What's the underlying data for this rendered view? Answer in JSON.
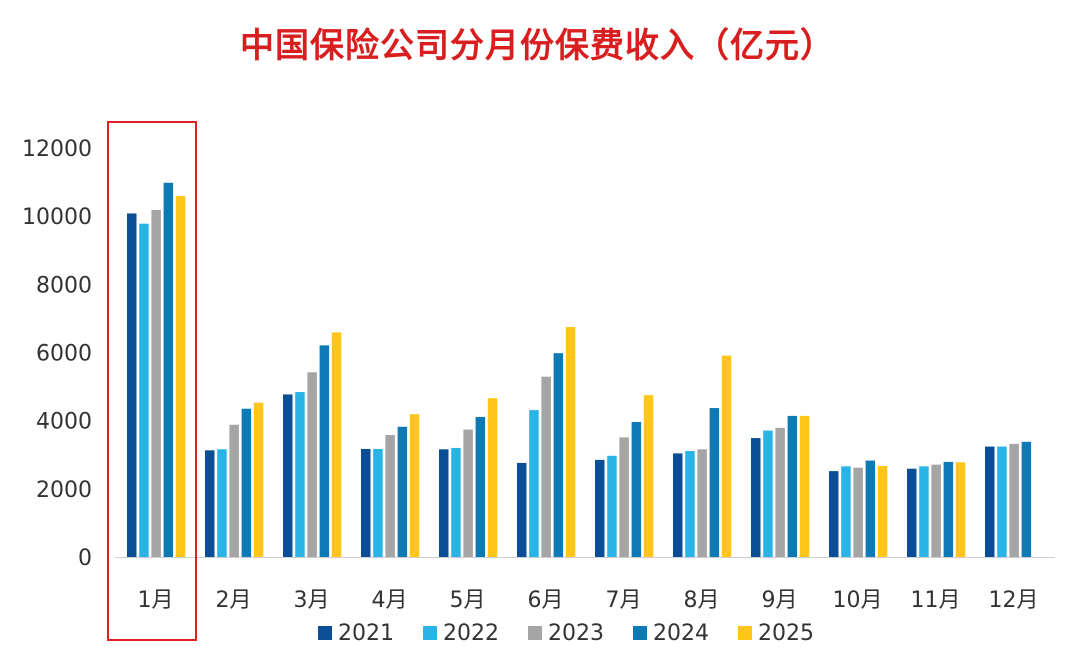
{
  "chart_data": {
    "type": "bar",
    "title": "中国保险公司分月份保费收入（亿元）",
    "xlabel": "",
    "ylabel": "",
    "ylim": [
      0,
      12000
    ],
    "yticks": [
      0,
      2000,
      4000,
      6000,
      8000,
      10000,
      12000
    ],
    "categories": [
      "1月",
      "2月",
      "3月",
      "4月",
      "5月",
      "6月",
      "7月",
      "8月",
      "9月",
      "10月",
      "11月",
      "12月"
    ],
    "series": [
      {
        "name": "2021",
        "color": "#0a4f96",
        "values": [
          10080,
          3130,
          4770,
          3170,
          3160,
          2760,
          2850,
          3040,
          3490,
          2520,
          2590,
          3240
        ]
      },
      {
        "name": "2022",
        "color": "#2ab3e6",
        "values": [
          9780,
          3160,
          4840,
          3170,
          3200,
          4310,
          2970,
          3110,
          3710,
          2660,
          2660,
          3240
        ]
      },
      {
        "name": "2023",
        "color": "#a5a5a5",
        "values": [
          10180,
          3880,
          5420,
          3580,
          3740,
          5290,
          3510,
          3160,
          3790,
          2620,
          2710,
          3320
        ]
      },
      {
        "name": "2024",
        "color": "#0d79b5",
        "values": [
          10980,
          4350,
          6210,
          3820,
          4110,
          5980,
          3960,
          4370,
          4140,
          2830,
          2790,
          3380
        ]
      },
      {
        "name": "2025",
        "color": "#ffc51a",
        "values": [
          10590,
          4530,
          6590,
          4190,
          4660,
          6750,
          4750,
          5910,
          4140,
          2670,
          2780,
          null
        ]
      }
    ],
    "legend": "bottom",
    "highlight": {
      "category": "1月",
      "color": "#e02020"
    },
    "grid": false
  }
}
